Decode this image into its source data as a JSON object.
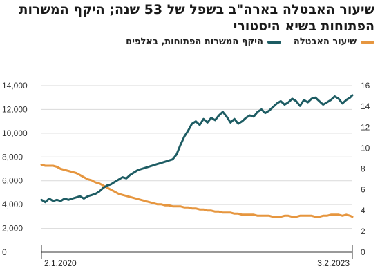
{
  "chart_data": {
    "type": "line",
    "title": "שיעור האבטלה בארה\"ב בשפל של 53 שנה; היקף המשרות הפתוחות בשיא היסטורי",
    "colors": {
      "unemployment": "#e6963f",
      "openings": "#1d5c63",
      "grid": "#d9d9d9"
    },
    "grid": true,
    "legend_position": "top-right",
    "x_start_label": "2.1.2020",
    "x_end_label": "3.2.2023",
    "left_axis": {
      "ylim": [
        0,
        14000
      ],
      "ticks": [
        "0",
        "2,000",
        "4,000",
        "6,000",
        "8,000",
        "10,000",
        "12,000",
        "14,000"
      ]
    },
    "right_axis": {
      "ylim": [
        0,
        16
      ],
      "ticks": [
        "0",
        "2",
        "4",
        "6",
        "8",
        "10",
        "12",
        "14",
        "16"
      ]
    },
    "series": [
      {
        "name": "שיעור האבטלה",
        "axis": "right",
        "x": [
          "2020-01-02",
          "2020-01-16",
          "2020-01-30",
          "2020-02-13",
          "2020-02-27",
          "2020-03-12",
          "2020-03-26",
          "2020-04-09",
          "2020-04-23",
          "2020-05-07",
          "2020-05-21",
          "2020-06-04",
          "2020-06-18",
          "2020-07-02",
          "2020-07-16",
          "2020-07-30",
          "2020-08-13",
          "2020-08-27",
          "2020-09-10",
          "2020-09-24",
          "2020-10-08",
          "2020-10-22",
          "2020-11-05",
          "2020-11-19",
          "2020-12-03",
          "2020-12-17",
          "2020-12-31",
          "2021-01-14",
          "2021-01-28",
          "2021-02-11",
          "2021-02-25",
          "2021-03-11",
          "2021-03-25",
          "2021-04-08",
          "2021-04-22",
          "2021-05-06",
          "2021-05-20",
          "2021-06-03",
          "2021-06-17",
          "2021-07-01",
          "2021-07-15",
          "2021-07-29",
          "2021-08-12",
          "2021-08-26",
          "2021-09-09",
          "2021-09-23",
          "2021-10-07",
          "2021-10-21",
          "2021-11-04",
          "2021-11-18",
          "2021-12-02",
          "2021-12-16",
          "2021-12-30",
          "2022-01-13",
          "2022-01-27",
          "2022-02-10",
          "2022-02-24",
          "2022-03-10",
          "2022-03-24",
          "2022-04-07",
          "2022-04-21",
          "2022-05-05",
          "2022-05-19",
          "2022-06-02",
          "2022-06-16",
          "2022-06-30",
          "2022-07-14",
          "2022-07-28",
          "2022-08-11",
          "2022-08-25",
          "2022-09-08",
          "2022-09-22",
          "2022-10-06",
          "2022-10-20",
          "2022-11-03",
          "2022-11-17",
          "2022-12-01",
          "2022-12-15",
          "2022-12-29",
          "2023-01-12",
          "2023-01-26",
          "2023-02-03"
        ],
        "values": [
          8.4,
          8.3,
          8.3,
          8.3,
          8.2,
          8.0,
          7.9,
          7.8,
          7.7,
          7.6,
          7.4,
          7.2,
          7.0,
          6.9,
          6.7,
          6.6,
          6.4,
          6.2,
          6.0,
          5.8,
          5.6,
          5.5,
          5.4,
          5.3,
          5.2,
          5.1,
          5.0,
          4.9,
          4.8,
          4.7,
          4.6,
          4.6,
          4.5,
          4.5,
          4.4,
          4.4,
          4.4,
          4.3,
          4.3,
          4.2,
          4.2,
          4.1,
          4.1,
          4.0,
          4.0,
          3.9,
          3.9,
          3.8,
          3.8,
          3.8,
          3.7,
          3.7,
          3.6,
          3.6,
          3.6,
          3.6,
          3.5,
          3.5,
          3.5,
          3.5,
          3.4,
          3.4,
          3.4,
          3.5,
          3.5,
          3.4,
          3.4,
          3.5,
          3.5,
          3.5,
          3.5,
          3.4,
          3.4,
          3.5,
          3.5,
          3.6,
          3.6,
          3.6,
          3.5,
          3.6,
          3.5,
          3.4
        ]
      },
      {
        "name": "היקף המשרות הפתוחות, באלפים",
        "axis": "left",
        "x": [
          "2020-01-02",
          "2020-01-16",
          "2020-01-30",
          "2020-02-13",
          "2020-02-27",
          "2020-03-12",
          "2020-03-26",
          "2020-04-09",
          "2020-04-23",
          "2020-05-07",
          "2020-05-21",
          "2020-06-04",
          "2020-06-18",
          "2020-07-02",
          "2020-07-16",
          "2020-07-30",
          "2020-08-13",
          "2020-08-27",
          "2020-09-10",
          "2020-09-24",
          "2020-10-08",
          "2020-10-22",
          "2020-11-05",
          "2020-11-19",
          "2020-12-03",
          "2020-12-17",
          "2020-12-31",
          "2021-01-14",
          "2021-01-28",
          "2021-02-11",
          "2021-02-25",
          "2021-03-11",
          "2021-03-25",
          "2021-04-08",
          "2021-04-22",
          "2021-05-06",
          "2021-05-20",
          "2021-06-03",
          "2021-06-17",
          "2021-07-01",
          "2021-07-15",
          "2021-07-29",
          "2021-08-12",
          "2021-08-26",
          "2021-09-09",
          "2021-09-23",
          "2021-10-07",
          "2021-10-21",
          "2021-11-04",
          "2021-11-18",
          "2021-12-02",
          "2021-12-16",
          "2021-12-30",
          "2022-01-13",
          "2022-01-27",
          "2022-02-10",
          "2022-02-24",
          "2022-03-10",
          "2022-03-24",
          "2022-04-07",
          "2022-04-21",
          "2022-05-05",
          "2022-05-19",
          "2022-06-02",
          "2022-06-16",
          "2022-06-30",
          "2022-07-14",
          "2022-07-28",
          "2022-08-11",
          "2022-08-25",
          "2022-09-08",
          "2022-09-22",
          "2022-10-06",
          "2022-10-20",
          "2022-11-03",
          "2022-11-17",
          "2022-12-01",
          "2022-12-15",
          "2022-12-29",
          "2023-01-12",
          "2023-01-26",
          "2023-02-03"
        ],
        "values": [
          4400,
          4200,
          4500,
          4300,
          4400,
          4300,
          4500,
          4400,
          4500,
          4600,
          4700,
          4500,
          4700,
          4800,
          4900,
          5100,
          5400,
          5600,
          5700,
          5900,
          6100,
          6300,
          6200,
          6500,
          6700,
          6900,
          7000,
          7100,
          7200,
          7300,
          7400,
          7500,
          7600,
          7700,
          7800,
          8200,
          9000,
          9700,
          10200,
          10800,
          11000,
          10700,
          11200,
          10900,
          11300,
          11100,
          11500,
          11800,
          11400,
          10900,
          11200,
          10800,
          11000,
          11300,
          11500,
          11400,
          11800,
          12000,
          11700,
          11900,
          12200,
          12500,
          12700,
          12400,
          12600,
          12900,
          12700,
          12300,
          12800,
          12600,
          12900,
          13000,
          12700,
          12400,
          12600,
          12800,
          13100,
          12900,
          12500,
          12800,
          13000,
          13200
        ]
      }
    ]
  }
}
